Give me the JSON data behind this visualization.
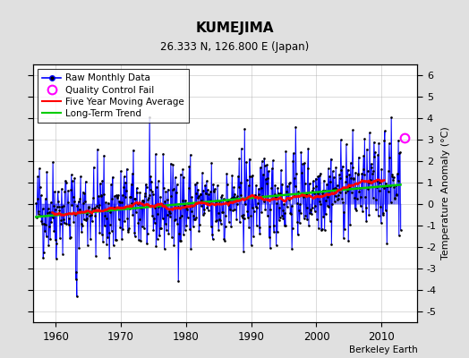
{
  "title": "KUMEJIMA",
  "subtitle": "26.333 N, 126.800 E (Japan)",
  "ylabel": "Temperature Anomaly (°C)",
  "credit": "Berkeley Earth",
  "xlim": [
    1956.5,
    2015.5
  ],
  "ylim": [
    -5.5,
    6.5
  ],
  "yticks": [
    -5,
    -4,
    -3,
    -2,
    -1,
    0,
    1,
    2,
    3,
    4,
    5,
    6
  ],
  "xticks": [
    1960,
    1970,
    1980,
    1990,
    2000,
    2010
  ],
  "raw_color": "#0000ff",
  "ma_color": "#ff0000",
  "trend_color": "#00cc00",
  "qc_color": "#ff00ff",
  "bg_color": "#e0e0e0",
  "plot_bg": "#ffffff",
  "grid_color": "#aaaaaa",
  "seed": 42,
  "n_months": 672,
  "start_year": 1957.0,
  "noise_scale": 1.05,
  "seasonal_scale": 0.25,
  "ma_window": 60,
  "qc_year": 2013.5,
  "qc_value": 3.1
}
